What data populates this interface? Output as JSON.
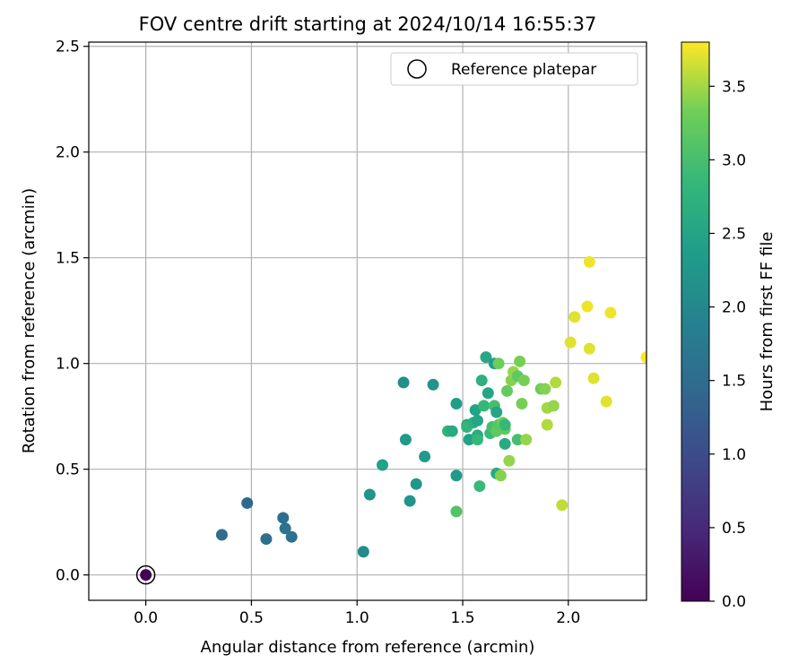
{
  "chart_data": {
    "type": "scatter",
    "title": "FOV centre drift starting at 2024/10/14 16:55:37",
    "xlabel": "Angular distance from reference (arcmin)",
    "ylabel": "Rotation from reference (arcmin)",
    "xlim": [
      -0.27,
      2.37
    ],
    "ylim": [
      -0.12,
      2.52
    ],
    "xticks": [
      "0.0",
      "0.5",
      "1.0",
      "1.5",
      "2.0"
    ],
    "yticks": [
      "0.0",
      "0.5",
      "1.0",
      "1.5",
      "2.0",
      "2.5"
    ],
    "grid": true,
    "legend": {
      "placement": "top-right",
      "label": "Reference platepar"
    },
    "colorbar": {
      "label": "Hours from first FF file",
      "range": [
        0.0,
        3.8
      ],
      "colormap": "viridis",
      "ticks": [
        "0.0",
        "0.5",
        "1.0",
        "1.5",
        "2.0",
        "2.5",
        "3.0",
        "3.5"
      ]
    },
    "reference_point": {
      "x": 0.0,
      "y": 0.0,
      "hours": 0.0
    },
    "points": [
      [
        0.36,
        0.19,
        1.5
      ],
      [
        0.48,
        0.34,
        1.45
      ],
      [
        0.57,
        0.17,
        1.55
      ],
      [
        0.65,
        0.27,
        1.55
      ],
      [
        0.66,
        0.22,
        1.6
      ],
      [
        0.69,
        0.18,
        1.6
      ],
      [
        1.03,
        0.11,
        2.05
      ],
      [
        1.06,
        0.38,
        2.2
      ],
      [
        1.12,
        0.52,
        2.45
      ],
      [
        1.22,
        0.91,
        2.1
      ],
      [
        1.23,
        0.64,
        2.3
      ],
      [
        1.25,
        0.35,
        2.2
      ],
      [
        1.28,
        0.43,
        2.25
      ],
      [
        1.32,
        0.56,
        2.3
      ],
      [
        1.36,
        0.9,
        2.2
      ],
      [
        1.43,
        0.68,
        2.75
      ],
      [
        1.45,
        0.68,
        2.6
      ],
      [
        1.47,
        0.47,
        2.3
      ],
      [
        1.47,
        0.81,
        2.4
      ],
      [
        1.47,
        0.3,
        3.1
      ],
      [
        1.52,
        0.71,
        2.55
      ],
      [
        1.52,
        0.7,
        2.8
      ],
      [
        1.53,
        0.64,
        2.45
      ],
      [
        1.55,
        0.72,
        2.7
      ],
      [
        1.56,
        0.78,
        2.45
      ],
      [
        1.57,
        0.73,
        2.5
      ],
      [
        1.57,
        0.66,
        2.6
      ],
      [
        1.57,
        0.64,
        2.85
      ],
      [
        1.58,
        0.42,
        2.9
      ],
      [
        1.59,
        0.92,
        2.7
      ],
      [
        1.6,
        0.8,
        2.85
      ],
      [
        1.61,
        1.03,
        2.55
      ],
      [
        1.62,
        0.86,
        2.5
      ],
      [
        1.63,
        0.67,
        2.9
      ],
      [
        1.64,
        0.7,
        3.0
      ],
      [
        1.65,
        1.0,
        2.4
      ],
      [
        1.65,
        0.8,
        3.0
      ],
      [
        1.66,
        0.48,
        2.6
      ],
      [
        1.66,
        0.77,
        2.5
      ],
      [
        1.66,
        0.68,
        3.2
      ],
      [
        1.67,
        1.0,
        3.3
      ],
      [
        1.67,
        0.71,
        3.15
      ],
      [
        1.68,
        0.47,
        3.4
      ],
      [
        1.69,
        0.72,
        3.3
      ],
      [
        1.7,
        0.62,
        2.6
      ],
      [
        1.7,
        0.69,
        3.2
      ],
      [
        1.7,
        0.71,
        2.85
      ],
      [
        1.71,
        0.87,
        3.25
      ],
      [
        1.72,
        0.54,
        3.45
      ],
      [
        1.73,
        0.92,
        3.4
      ],
      [
        1.74,
        0.96,
        3.45
      ],
      [
        1.76,
        0.64,
        3.0
      ],
      [
        1.76,
        0.94,
        3.2
      ],
      [
        1.77,
        1.01,
        3.35
      ],
      [
        1.78,
        0.81,
        3.35
      ],
      [
        1.79,
        0.92,
        3.35
      ],
      [
        1.8,
        0.64,
        3.45
      ],
      [
        1.87,
        0.88,
        3.3
      ],
      [
        1.89,
        0.88,
        3.4
      ],
      [
        1.9,
        0.71,
        3.55
      ],
      [
        1.9,
        0.79,
        3.5
      ],
      [
        1.93,
        0.8,
        3.45
      ],
      [
        1.94,
        0.91,
        3.55
      ],
      [
        1.97,
        0.33,
        3.6
      ],
      [
        2.01,
        1.1,
        3.7
      ],
      [
        2.03,
        1.22,
        3.7
      ],
      [
        2.09,
        1.27,
        3.75
      ],
      [
        2.1,
        1.48,
        3.75
      ],
      [
        2.1,
        1.07,
        3.7
      ],
      [
        2.12,
        0.93,
        3.7
      ],
      [
        2.18,
        0.82,
        3.7
      ],
      [
        2.2,
        1.24,
        3.75
      ],
      [
        2.37,
        1.03,
        3.8
      ]
    ]
  }
}
